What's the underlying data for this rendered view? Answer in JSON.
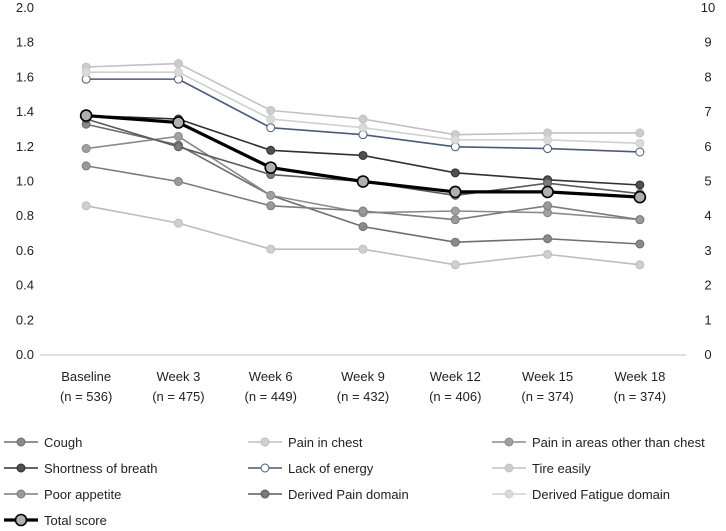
{
  "chart_data": {
    "type": "line",
    "title": "",
    "xlabel": "",
    "ylabel": "",
    "ylim": [
      0.0,
      2.0
    ],
    "y2lim": [
      0,
      10
    ],
    "y_ticks": [
      "0.0",
      "0.2",
      "0.4",
      "0.6",
      "0.8",
      "1.0",
      "1.2",
      "1.4",
      "1.6",
      "1.8",
      "2.0"
    ],
    "y2_ticks": [
      "0",
      "1",
      "2",
      "3",
      "4",
      "5",
      "6",
      "7",
      "8",
      "9",
      "10"
    ],
    "categories": [
      {
        "name": "Baseline",
        "n": "(n = 536)"
      },
      {
        "name": "Week 3",
        "n": "(n = 475)"
      },
      {
        "name": "Week 6",
        "n": "(n = 449)"
      },
      {
        "name": "Week 9",
        "n": "(n = 432)"
      },
      {
        "name": "Week 12",
        "n": "(n = 406)"
      },
      {
        "name": "Week 15",
        "n": "(n = 374)"
      },
      {
        "name": "Week 18",
        "n": "(n = 374)"
      }
    ],
    "grid": false,
    "legend_position": "bottom",
    "series": [
      {
        "name": "Cough",
        "axis": "left",
        "color": "#6e6e6e",
        "marker": "#8a8a8a",
        "values": [
          1.33,
          1.21,
          0.92,
          0.74,
          0.65,
          0.67,
          0.64
        ]
      },
      {
        "name": "Pain in chest",
        "axis": "left",
        "color": "#bdbdbd",
        "marker": "#cfcfcf",
        "values": [
          0.86,
          0.76,
          0.61,
          0.61,
          0.52,
          0.58,
          0.52
        ]
      },
      {
        "name": "Pain in areas other than chest",
        "axis": "left",
        "color": "#8a8a8a",
        "marker": "#a0a0a0",
        "values": [
          1.19,
          1.26,
          0.92,
          0.82,
          0.83,
          0.82,
          0.78
        ]
      },
      {
        "name": "Shortness of breath",
        "axis": "left",
        "color": "#303030",
        "marker": "#505050",
        "values": [
          1.38,
          1.36,
          1.18,
          1.15,
          1.05,
          1.01,
          0.98
        ]
      },
      {
        "name": "Lack of energy",
        "axis": "left",
        "color": "#4a5a78",
        "marker": "#ffffff",
        "values": [
          1.59,
          1.59,
          1.31,
          1.27,
          1.2,
          1.19,
          1.17
        ]
      },
      {
        "name": "Tire easily",
        "axis": "left",
        "color": "#c2c2c2",
        "marker": "#cccccc",
        "values": [
          1.66,
          1.68,
          1.41,
          1.36,
          1.27,
          1.28,
          1.28
        ]
      },
      {
        "name": "Poor appetite",
        "axis": "left",
        "color": "#7c7c7c",
        "marker": "#9a9a9a",
        "values": [
          1.09,
          1.0,
          0.86,
          0.83,
          0.78,
          0.86,
          0.78
        ]
      },
      {
        "name": "Derived Pain domain",
        "axis": "left",
        "color": "#5a5a5a",
        "marker": "#7a7a7a",
        "values": [
          1.36,
          1.2,
          1.04,
          1.0,
          0.92,
          0.99,
          0.93
        ]
      },
      {
        "name": "Derived Fatigue domain",
        "axis": "left",
        "color": "#d0d0d0",
        "marker": "#dadada",
        "values": [
          1.63,
          1.63,
          1.36,
          1.31,
          1.24,
          1.24,
          1.22
        ]
      },
      {
        "name": "Total score",
        "axis": "right",
        "color": "#000000",
        "marker": "#b0b0b0",
        "bold": true,
        "values": [
          6.9,
          6.7,
          5.4,
          5.0,
          4.7,
          4.7,
          4.55
        ]
      }
    ]
  }
}
